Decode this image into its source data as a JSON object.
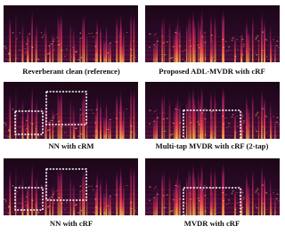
{
  "panels": [
    {
      "caption": "Reverberant clean (reference)"
    },
    {
      "caption": "Proposed ADL-MVDR with cRF"
    },
    {
      "caption": "NN with cRM"
    },
    {
      "caption": "Multi-tap MVDR with cRF (2-tap)"
    },
    {
      "caption": "NN with cRF"
    },
    {
      "caption": "MVDR with cRF"
    }
  ]
}
